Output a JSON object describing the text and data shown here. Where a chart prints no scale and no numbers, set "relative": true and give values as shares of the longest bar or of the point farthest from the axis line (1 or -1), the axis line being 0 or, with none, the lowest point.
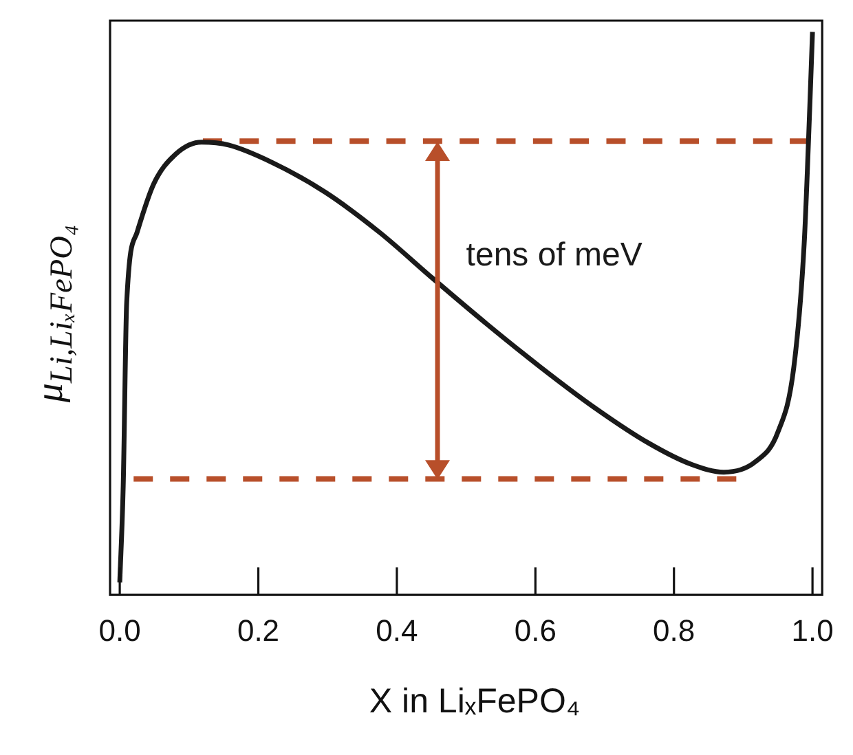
{
  "chart_data": {
    "type": "line",
    "relative": true,
    "xlabel": "X in LiₓFePO₄",
    "ylabel": "μ$_{Li,LiₓFePO₄}$",
    "xlim": [
      -0.014,
      1.014
    ],
    "xticks": [
      {
        "value": 0,
        "label": "0.0"
      },
      0.2,
      0.4,
      0.6,
      0.8,
      {
        "value": 1,
        "label": "1.0"
      }
    ],
    "grid": false,
    "legend": false,
    "marker": "none",
    "series": [
      {
        "color": "#1a1a1a",
        "line_style": "solid",
        "x": [
          0.0,
          0.005,
          0.01,
          0.025,
          0.049,
          0.08,
          0.118,
          0.157,
          0.22,
          0.297,
          0.375,
          0.452,
          0.53,
          0.608,
          0.685,
          0.763,
          0.825,
          0.872,
          0.918,
          0.95,
          0.973,
          0.988,
          0.996,
          1.0
        ],
        "values": [
          0.022,
          0.194,
          0.519,
          0.644,
          0.73,
          0.782,
          0.804,
          0.799,
          0.768,
          0.715,
          0.644,
          0.562,
          0.481,
          0.404,
          0.333,
          0.27,
          0.232,
          0.218,
          0.237,
          0.289,
          0.404,
          0.624,
          0.864,
          1.0
        ]
      },
      {
        "color": "#b84f2a",
        "line_style": "dashed",
        "x": [
          0.12,
          0.995
        ],
        "values": [
          0.806,
          0.806
        ]
      },
      {
        "color": "#b84f2a",
        "line_style": "dashed",
        "x": [
          0.02,
          0.89
        ],
        "values": [
          0.206,
          0.206
        ]
      }
    ],
    "annotations": [
      "tens of meV"
    ]
  }
}
